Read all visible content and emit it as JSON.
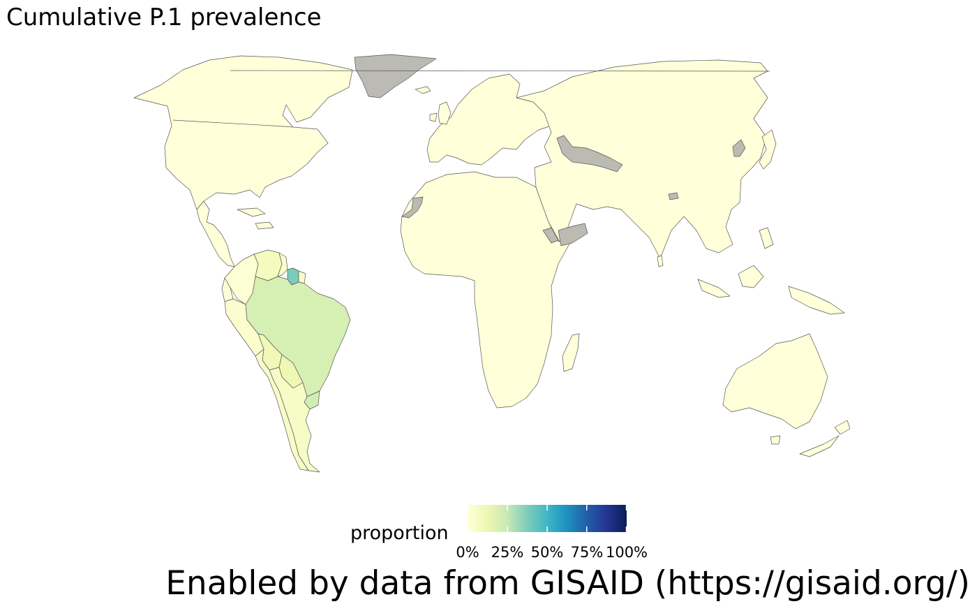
{
  "title": "Cumulative P.1 prevalence",
  "caption": "Enabled by data from GISAID (https://gisaid.org/)",
  "legend": {
    "title": "proportion",
    "ticks": [
      "0%",
      "25%",
      "50%",
      "75%",
      "100%"
    ],
    "tick_values": [
      0,
      0.25,
      0.5,
      0.75,
      1.0
    ],
    "gradient": [
      "#ffffd9",
      "#edf8b1",
      "#c7e9b4",
      "#7fcdbb",
      "#41b6c4",
      "#1d91c0",
      "#225ea8",
      "#253494",
      "#081d58"
    ]
  },
  "colors": {
    "low": "#ffffd9",
    "no_data": "#bbbbb4",
    "border": "#555555"
  },
  "regions": {
    "north_america": {
      "name": "North America",
      "proportion": 0.0
    },
    "central_america": {
      "name": "Central America",
      "proportion": 0.0
    },
    "colombia": {
      "name": "Colombia",
      "proportion": 0.02
    },
    "venezuela": {
      "name": "Venezuela",
      "proportion": 0.08
    },
    "guyana": {
      "name": "Guyana",
      "proportion": 0.04
    },
    "suriname": {
      "name": "Suriname",
      "proportion": 0.38
    },
    "french_guiana": {
      "name": "French Guiana",
      "proportion": 0.05
    },
    "ecuador": {
      "name": "Ecuador",
      "proportion": 0.01
    },
    "peru": {
      "name": "Peru",
      "proportion": 0.03
    },
    "brazil": {
      "name": "Brazil",
      "proportion": 0.2
    },
    "bolivia": {
      "name": "Bolivia",
      "proportion": 0.1
    },
    "paraguay": {
      "name": "Paraguay",
      "proportion": 0.12
    },
    "uruguay": {
      "name": "Uruguay",
      "proportion": 0.22
    },
    "argentina": {
      "name": "Argentina",
      "proportion": 0.06
    },
    "chile": {
      "name": "Chile",
      "proportion": 0.05
    },
    "europe": {
      "name": "Europe",
      "proportion": 0.0
    },
    "africa": {
      "name": "Africa",
      "proportion": 0.0
    },
    "asia": {
      "name": "Asia",
      "proportion": 0.0
    },
    "oceania": {
      "name": "Oceania",
      "proportion": 0.0
    }
  },
  "no_data_regions": [
    "Greenland",
    "Western Sahara",
    "Turkmenistan",
    "Afghanistan",
    "Yemen",
    "Eritrea",
    "North Korea",
    "Bhutan"
  ]
}
